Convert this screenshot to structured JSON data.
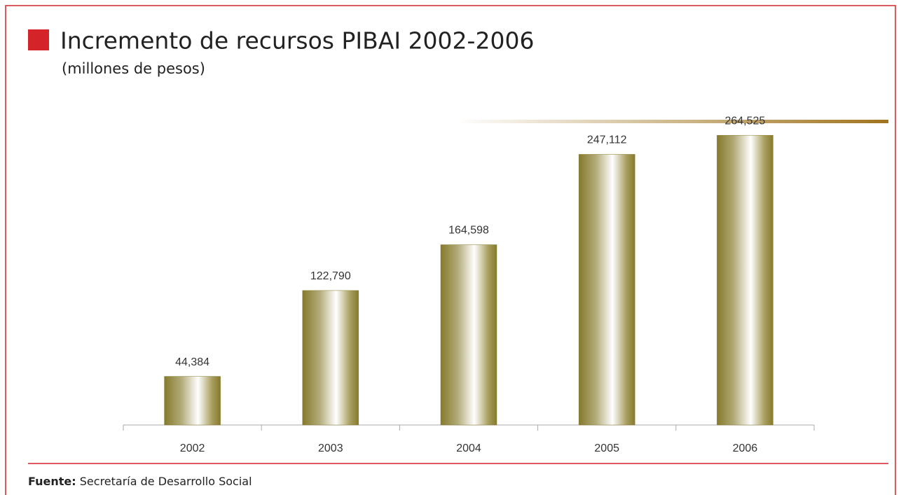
{
  "chart_data": {
    "type": "bar",
    "title": "Incremento de recursos PIBAI 2002-2006",
    "subtitle": "(millones de pesos)",
    "categories": [
      "2002",
      "2003",
      "2004",
      "2005",
      "2006"
    ],
    "values": [
      44384,
      122790,
      164598,
      247112,
      264525
    ],
    "value_labels": [
      "44,384",
      "122,790",
      "164,598",
      "247,112",
      "264,525"
    ],
    "color": "#857a2c",
    "ylim": [
      0,
      280000
    ],
    "source_label": "Fuente:",
    "source": "Secretaría de Desarrollo Social"
  }
}
